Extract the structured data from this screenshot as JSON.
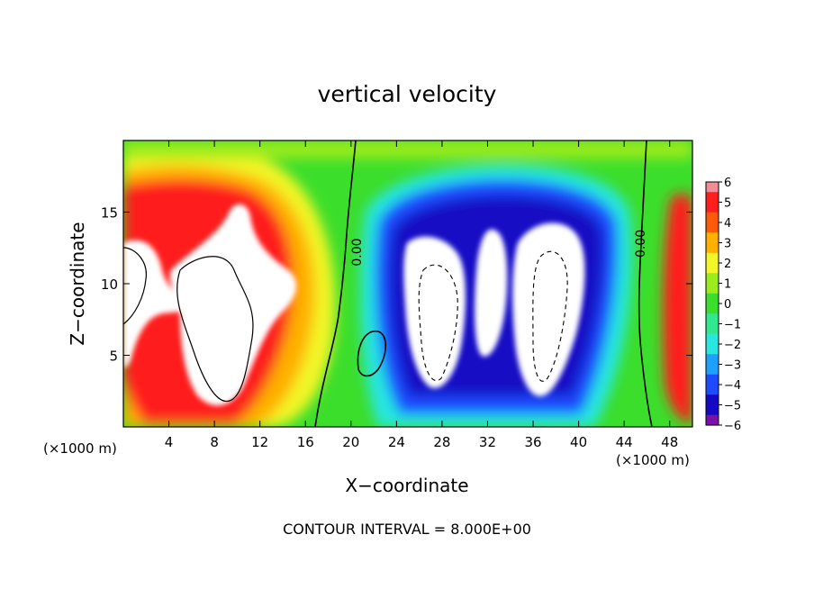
{
  "chart_data": {
    "type": "heatmap",
    "title": "vertical velocity",
    "xlabel": "X−coordinate",
    "ylabel": "Z−coordinate",
    "x_unit_left": "(×1000 m)",
    "x_unit_right": "(×1000 m)",
    "footer": "CONTOUR INTERVAL = 8.000E+00",
    "xlim": [
      0,
      50
    ],
    "ylim": [
      0,
      20
    ],
    "x_ticks": [
      4,
      8,
      12,
      16,
      20,
      24,
      28,
      32,
      36,
      40,
      44,
      48
    ],
    "x_tick_labels": [
      "4",
      "8",
      "12",
      "16",
      "20",
      "24",
      "28",
      "32",
      "36",
      "40",
      "44",
      "48"
    ],
    "y_ticks": [
      5,
      10,
      15
    ],
    "y_tick_labels": [
      "5",
      "10",
      "15"
    ],
    "contour_labels": [
      {
        "text": "0.00",
        "x": 20.9,
        "y": 12.2
      },
      {
        "text": "0.00",
        "x": 45.8,
        "y": 12.8
      }
    ],
    "colorbar": {
      "range": [
        -6,
        6
      ],
      "tick_labels": [
        "6",
        "5",
        "4",
        "3",
        "2",
        "1",
        "0",
        "−1",
        "−2",
        "−3",
        "−4",
        "−5",
        "−6"
      ],
      "stops": [
        {
          "v": -6,
          "c": "#7a10a8"
        },
        {
          "v": -5,
          "c": "#1508c4"
        },
        {
          "v": -4,
          "c": "#1e4bff"
        },
        {
          "v": -3,
          "c": "#1ea0ff"
        },
        {
          "v": -2,
          "c": "#28e6e0"
        },
        {
          "v": -1,
          "c": "#30e890"
        },
        {
          "v": 0,
          "c": "#3cde2c"
        },
        {
          "v": 1,
          "c": "#9ceb1c"
        },
        {
          "v": 2,
          "c": "#f2f528"
        },
        {
          "v": 3,
          "c": "#ffb000"
        },
        {
          "v": 4,
          "c": "#ff5a0a"
        },
        {
          "v": 5,
          "c": "#ff1e1e"
        },
        {
          "v": 6,
          "c": "#f28c96"
        }
      ]
    }
  }
}
